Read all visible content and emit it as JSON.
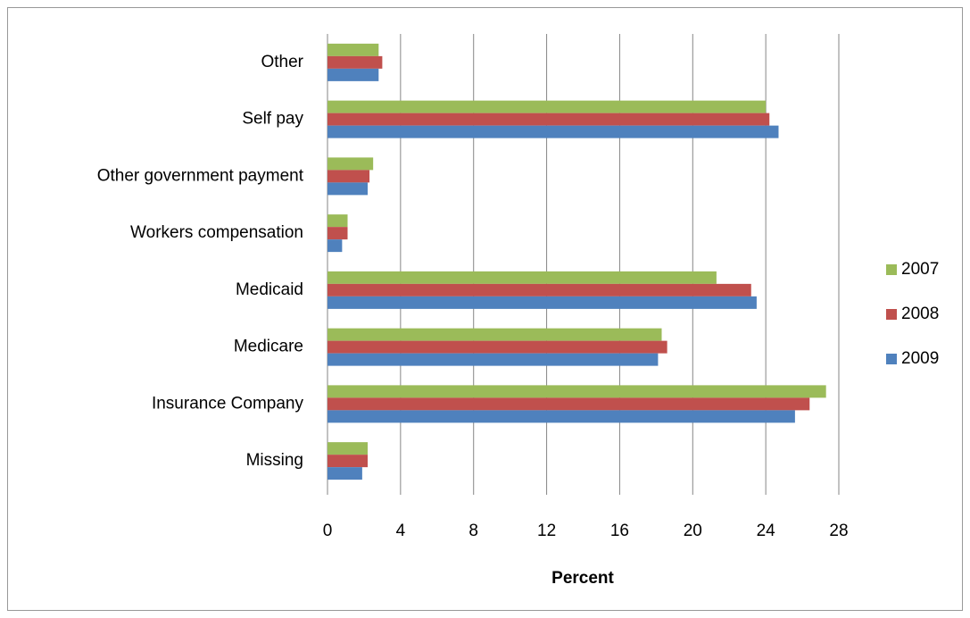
{
  "chart_data": {
    "type": "hbar",
    "x_label": "Percent",
    "categories": [
      "Other",
      "Self pay",
      "Other government payment",
      "Workers compensation",
      "Medicaid",
      "Medicare",
      "Insurance Company",
      "Missing"
    ],
    "series": [
      {
        "name": "2007",
        "color": "#9bbb59",
        "values": [
          2.8,
          24.0,
          2.5,
          1.1,
          21.3,
          18.3,
          27.3,
          2.2
        ]
      },
      {
        "name": "2008",
        "color": "#c0504d",
        "values": [
          3.0,
          24.2,
          2.3,
          1.1,
          23.2,
          18.6,
          26.4,
          2.2
        ]
      },
      {
        "name": "2009",
        "color": "#4f81bd",
        "values": [
          2.8,
          24.7,
          2.2,
          0.8,
          23.5,
          18.1,
          25.6,
          1.9
        ]
      }
    ],
    "xlim": [
      0,
      28
    ],
    "xticks": [
      0,
      4,
      8,
      12,
      16,
      20,
      24,
      28
    ],
    "grid": true,
    "legend": "right"
  }
}
